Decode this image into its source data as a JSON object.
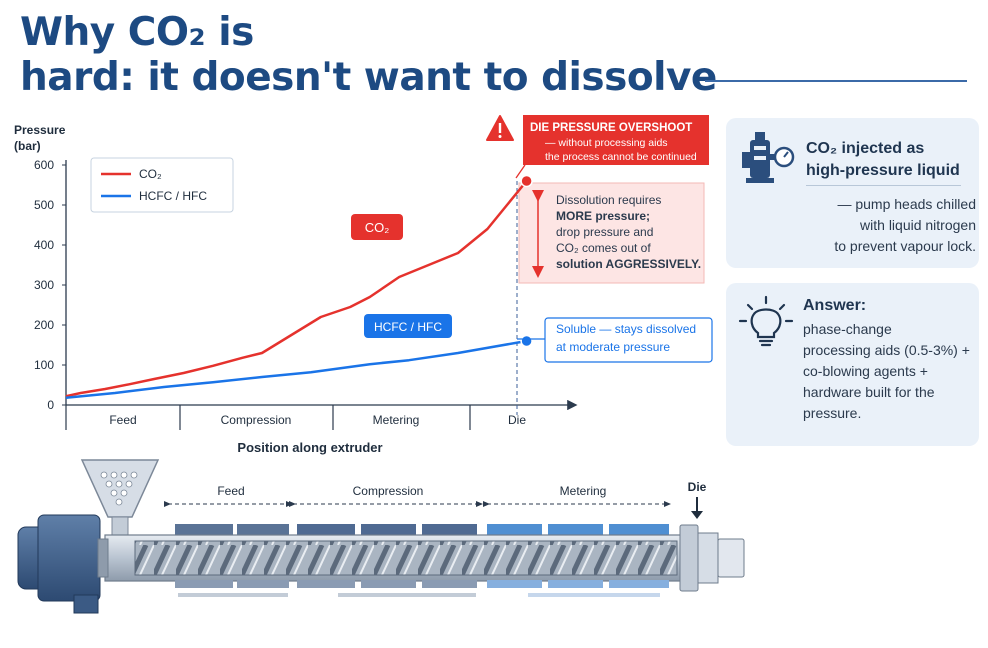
{
  "page": {
    "title_line1": "Why CO₂ is",
    "title_line2": "hard: it doesn't want to dissolve"
  },
  "colors": {
    "co2": "#e5322d",
    "hcfc": "#1a74e8",
    "navy": "#1d4a82",
    "card": "#eaf1f9"
  },
  "chart_data": {
    "type": "line",
    "ylabel": "Pressure",
    "yunit": "(bar)",
    "xlabel": "Position along extruder",
    "ylim": [
      0,
      600
    ],
    "yticks": [
      "0",
      "100",
      "200",
      "300",
      "400",
      "500",
      "600"
    ],
    "zones": [
      "Feed",
      "Compression",
      "Metering",
      "Die"
    ],
    "grid": false,
    "legend_position": "top-left",
    "series": [
      {
        "name": "CO₂",
        "label": "CO₂",
        "color": "#e5322d",
        "x": [
          0,
          0.03,
          0.08,
          0.13,
          0.18,
          0.24,
          0.3,
          0.36,
          0.4,
          0.46,
          0.52,
          0.58,
          0.62,
          0.68,
          0.74,
          0.8,
          0.86,
          0.9,
          0.94
        ],
        "values": [
          22,
          30,
          40,
          52,
          65,
          80,
          98,
          118,
          130,
          175,
          220,
          245,
          270,
          320,
          350,
          380,
          440,
          500,
          560
        ]
      },
      {
        "name": "HCFC / HFC",
        "label": "HCFC / HFC",
        "color": "#1a74e8",
        "x": [
          0,
          0.1,
          0.2,
          0.3,
          0.4,
          0.5,
          0.56,
          0.62,
          0.7,
          0.8,
          0.94
        ],
        "values": [
          18,
          30,
          45,
          57,
          70,
          82,
          92,
          102,
          112,
          130,
          160
        ]
      }
    ],
    "annotations": {
      "overshoot_title": "DIE PRESSURE OVERSHOOT",
      "overshoot_line1": "— without processing aids",
      "overshoot_line2": "the process cannot be continued",
      "dissolution_lines": [
        "Dissolution requires",
        "MORE pressure;",
        "drop pressure and",
        "CO₂ comes out of",
        "solution AGGRESSIVELY."
      ],
      "soluble_line1": "Soluble — stays dissolved",
      "soluble_line2": "at moderate pressure",
      "warning_icon": "warning-triangle-icon"
    }
  },
  "extruder": {
    "zone_labels": [
      "Feed",
      "Compression",
      "Metering"
    ],
    "die_label": "Die"
  },
  "cards": {
    "injection": {
      "icon": "pump-gauge-icon",
      "title_line1": "CO₂ injected as",
      "title_line2": "high-pressure liquid",
      "body": [
        "— pump heads chilled",
        "with liquid nitrogen",
        "to prevent vapour lock."
      ]
    },
    "answer": {
      "icon": "lightbulb-icon",
      "title": "Answer:",
      "body": [
        "phase-change",
        "processing aids (0.5-3%) +",
        "co-blowing agents +",
        "hardware built for the",
        "pressure."
      ]
    }
  }
}
